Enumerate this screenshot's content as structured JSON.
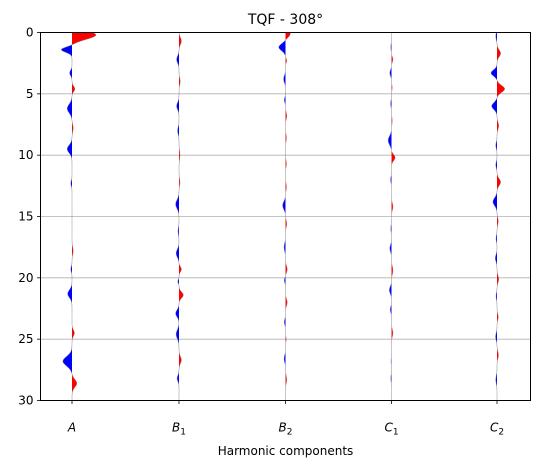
{
  "chart_data": {
    "type": "area",
    "title": "TQF - 308°",
    "xlabel": "Harmonic components",
    "ylabel": "",
    "ylim": [
      0,
      30
    ],
    "y_inverted": true,
    "y_ticks": [
      0,
      5,
      10,
      15,
      20,
      25,
      30
    ],
    "grid": "horizontal",
    "categories": [
      {
        "base": "A",
        "sub": ""
      },
      {
        "base": "B",
        "sub": "1"
      },
      {
        "base": "B",
        "sub": "2"
      },
      {
        "base": "C",
        "sub": "1"
      },
      {
        "base": "C",
        "sub": "2"
      }
    ],
    "colors": {
      "positive": "#ff0000",
      "negative": "#0000ff",
      "trace": "#888888"
    },
    "series": [
      {
        "peaks": [
          [
            0.2,
            1.0,
            0.5
          ],
          [
            1.4,
            -0.45,
            0.3
          ],
          [
            3.3,
            -0.1,
            0.3
          ],
          [
            4.6,
            0.12,
            0.3
          ],
          [
            6.2,
            -0.2,
            0.5
          ],
          [
            7.8,
            0.05,
            0.4
          ],
          [
            9.5,
            -0.2,
            0.45
          ],
          [
            12.3,
            -0.05,
            0.3
          ],
          [
            17.8,
            0.05,
            0.4
          ],
          [
            19.3,
            -0.05,
            0.3
          ],
          [
            21.3,
            -0.18,
            0.45
          ],
          [
            24.5,
            0.1,
            0.35
          ],
          [
            26.8,
            -0.38,
            0.55
          ],
          [
            28.6,
            0.2,
            0.45
          ]
        ]
      },
      {
        "peaks": [
          [
            0.7,
            0.1,
            0.4
          ],
          [
            2.2,
            -0.1,
            0.4
          ],
          [
            4.0,
            0.05,
            0.4
          ],
          [
            6.0,
            -0.1,
            0.4
          ],
          [
            8.0,
            -0.06,
            0.4
          ],
          [
            10.0,
            0.04,
            0.5
          ],
          [
            12.2,
            0.04,
            0.4
          ],
          [
            14.0,
            -0.14,
            0.5
          ],
          [
            16.2,
            -0.04,
            0.4
          ],
          [
            18.0,
            -0.12,
            0.45
          ],
          [
            19.3,
            0.1,
            0.3
          ],
          [
            20.3,
            -0.05,
            0.2
          ],
          [
            21.4,
            0.18,
            0.35
          ],
          [
            22.9,
            -0.14,
            0.4
          ],
          [
            24.6,
            -0.12,
            0.5
          ],
          [
            26.7,
            0.1,
            0.4
          ],
          [
            28.2,
            -0.08,
            0.35
          ]
        ]
      },
      {
        "peaks": [
          [
            0.1,
            0.2,
            0.4
          ],
          [
            1.2,
            -0.28,
            0.4
          ],
          [
            2.3,
            0.05,
            0.25
          ],
          [
            3.8,
            -0.08,
            0.4
          ],
          [
            5.5,
            -0.05,
            0.3
          ],
          [
            6.8,
            0.05,
            0.4
          ],
          [
            8.6,
            0.04,
            0.4
          ],
          [
            10.7,
            0.04,
            0.4
          ],
          [
            12.6,
            0.04,
            0.4
          ],
          [
            14.1,
            -0.12,
            0.45
          ],
          [
            15.6,
            0.05,
            0.4
          ],
          [
            17.5,
            -0.06,
            0.45
          ],
          [
            19.3,
            0.07,
            0.4
          ],
          [
            20.2,
            -0.05,
            0.3
          ],
          [
            22.0,
            0.07,
            0.4
          ],
          [
            23.6,
            -0.05,
            0.35
          ],
          [
            25.0,
            0.03,
            0.3
          ],
          [
            26.6,
            -0.06,
            0.4
          ],
          [
            28.3,
            0.05,
            0.45
          ]
        ]
      },
      {
        "peaks": [
          [
            1.2,
            -0.03,
            0.4
          ],
          [
            2.2,
            0.06,
            0.3
          ],
          [
            3.3,
            -0.07,
            0.35
          ],
          [
            4.5,
            0.03,
            0.3
          ],
          [
            5.8,
            -0.04,
            0.35
          ],
          [
            7.2,
            0.03,
            0.4
          ],
          [
            8.8,
            -0.14,
            0.5
          ],
          [
            10.2,
            0.15,
            0.35
          ],
          [
            12.0,
            -0.04,
            0.35
          ],
          [
            14.2,
            0.06,
            0.4
          ],
          [
            16.0,
            -0.03,
            0.4
          ],
          [
            17.6,
            -0.07,
            0.4
          ],
          [
            19.4,
            0.06,
            0.45
          ],
          [
            21.0,
            -0.09,
            0.4
          ],
          [
            22.6,
            -0.05,
            0.35
          ],
          [
            24.5,
            0.06,
            0.4
          ],
          [
            26.8,
            -0.02,
            0.4
          ],
          [
            28.2,
            -0.03,
            0.4
          ]
        ]
      },
      {
        "peaks": [
          [
            0.3,
            -0.05,
            0.4
          ],
          [
            1.7,
            0.15,
            0.4
          ],
          [
            3.3,
            -0.25,
            0.35
          ],
          [
            4.6,
            0.32,
            0.4
          ],
          [
            6.0,
            -0.22,
            0.4
          ],
          [
            7.6,
            0.07,
            0.4
          ],
          [
            9.2,
            -0.05,
            0.35
          ],
          [
            10.8,
            -0.05,
            0.35
          ],
          [
            12.2,
            0.15,
            0.4
          ],
          [
            13.8,
            -0.17,
            0.45
          ],
          [
            15.4,
            0.05,
            0.4
          ],
          [
            16.8,
            -0.04,
            0.35
          ],
          [
            18.4,
            -0.07,
            0.4
          ],
          [
            20.1,
            0.07,
            0.4
          ],
          [
            21.5,
            -0.04,
            0.35
          ],
          [
            23.2,
            0.05,
            0.35
          ],
          [
            24.8,
            -0.06,
            0.4
          ],
          [
            26.3,
            0.06,
            0.4
          ],
          [
            28.3,
            -0.05,
            0.45
          ]
        ]
      }
    ]
  }
}
